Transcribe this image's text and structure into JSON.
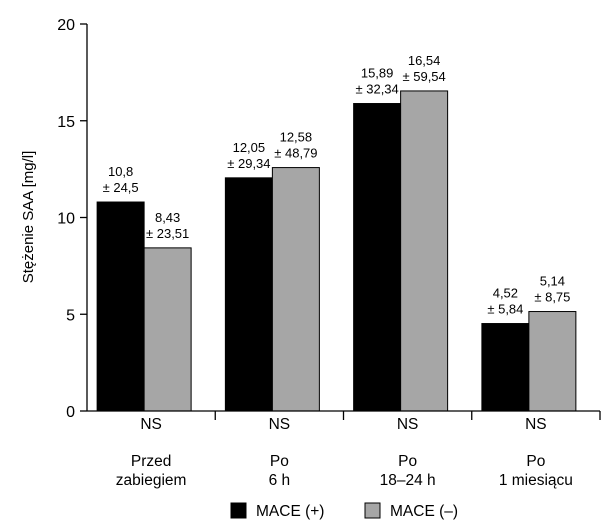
{
  "chart_data": {
    "type": "bar",
    "title": "",
    "ylabel": "Stężenie SAA [mg/l]",
    "xlabel": "",
    "ylim": [
      0,
      20
    ],
    "yticks": [
      0,
      5,
      10,
      15,
      20
    ],
    "grid": false,
    "legend_placement": "bottom",
    "categories": [
      [
        "Przed",
        "zabiegiem"
      ],
      [
        "Po",
        "6 h"
      ],
      [
        "Po",
        "18–24 h"
      ],
      [
        "Po",
        "1 miesiącu"
      ]
    ],
    "significance": [
      "NS",
      "NS",
      "NS",
      "NS"
    ],
    "series": [
      {
        "name": "MACE (+)",
        "color": "#000000",
        "values": [
          10.8,
          12.05,
          15.89,
          4.52
        ],
        "labels": [
          [
            "10,8",
            "± 24,5"
          ],
          [
            "12,05",
            "± 29,34"
          ],
          [
            "15,89",
            "± 32,34"
          ],
          [
            "4,52",
            "± 5,84"
          ]
        ]
      },
      {
        "name": "MACE (–)",
        "color": "#a6a6a6",
        "values": [
          8.43,
          12.58,
          16.54,
          5.14
        ],
        "labels": [
          [
            "8,43",
            "± 23,51"
          ],
          [
            "12,58",
            "± 48,79"
          ],
          [
            "16,54",
            "± 59,54"
          ],
          [
            "5,14",
            "± 8,75"
          ]
        ]
      }
    ]
  }
}
